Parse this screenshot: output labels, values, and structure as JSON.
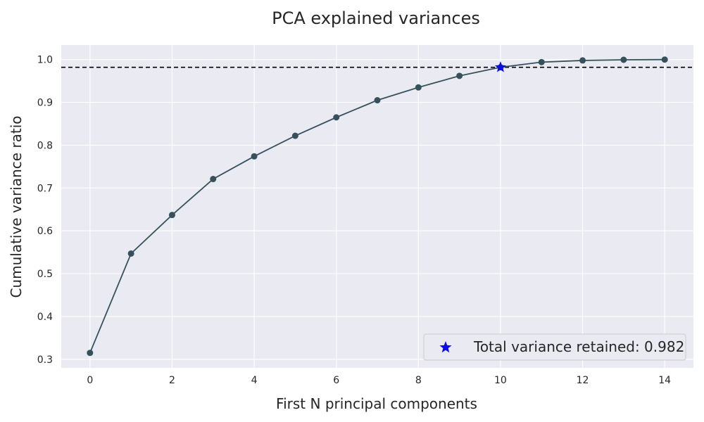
{
  "chart_data": {
    "type": "line",
    "title": "PCA explained variances",
    "xlabel": "First N principal components",
    "ylabel": "Cumulative variance ratio",
    "x": [
      0,
      1,
      2,
      3,
      4,
      5,
      6,
      7,
      8,
      9,
      10,
      11,
      12,
      13,
      14
    ],
    "series": [
      {
        "values": [
          0.315,
          0.547,
          0.637,
          0.721,
          0.774,
          0.822,
          0.865,
          0.905,
          0.935,
          0.962,
          0.982,
          0.994,
          0.998,
          0.9995,
          1.0
        ],
        "color": "#36515b",
        "marker": "circle"
      }
    ],
    "highlight": {
      "x": 10,
      "y": 0.982,
      "marker": "star",
      "color": "#0a0aef",
      "label": "Total variance retained: 0.982"
    },
    "threshold_line": {
      "y": 0.982,
      "style": "dashed",
      "color": "#000000"
    },
    "xlim": [
      -0.7,
      14.7
    ],
    "ylim": [
      0.28,
      1.034
    ],
    "xticks": [
      "0",
      "2",
      "4",
      "6",
      "8",
      "10",
      "12",
      "14"
    ],
    "yticks": [
      "0.3",
      "0.4",
      "0.5",
      "0.6",
      "0.7",
      "0.8",
      "0.9",
      "1.0"
    ],
    "grid": true,
    "legend_position": "lower-right",
    "background_color": "#eaeaf2"
  }
}
